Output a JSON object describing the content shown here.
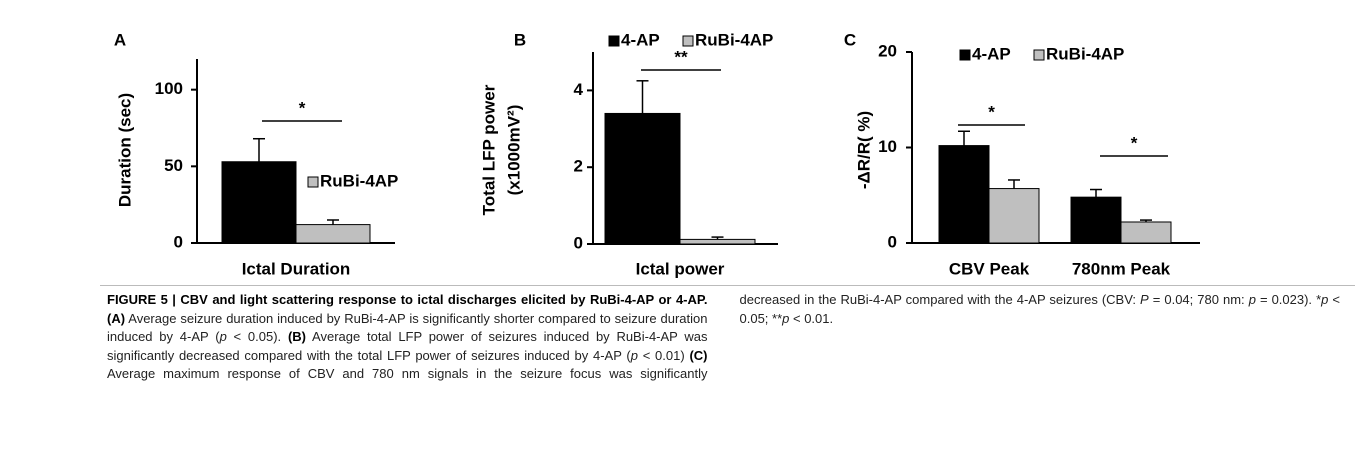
{
  "chart_data": [
    {
      "type": "bar",
      "panel": "A",
      "ylabel": "Duration (sec)",
      "ylim": [
        0,
        120
      ],
      "yticks": [
        0,
        50,
        100
      ],
      "categories": [
        "Ictal Duration"
      ],
      "series": [
        {
          "name": "4-AP",
          "color": "#000000",
          "values": [
            53
          ],
          "errors": [
            15
          ]
        },
        {
          "name": "RuBi-4AP",
          "color": "#bfbfbf",
          "values": [
            12
          ],
          "errors": [
            3
          ]
        }
      ],
      "annotations": [
        "*"
      ]
    },
    {
      "type": "bar",
      "panel": "B",
      "ylabel": [
        "Total LFP power",
        "(x1000mV²)"
      ],
      "ylim": [
        0,
        5
      ],
      "yticks": [
        0,
        2,
        4
      ],
      "categories": [
        "Ictal power"
      ],
      "series": [
        {
          "name": "4-AP",
          "color": "#000000",
          "values": [
            3.4
          ],
          "errors": [
            0.85
          ]
        },
        {
          "name": "RuBi-4AP",
          "color": "#bfbfbf",
          "values": [
            0.12
          ],
          "errors": [
            0.06
          ]
        }
      ],
      "annotations": [
        "**"
      ]
    },
    {
      "type": "bar",
      "panel": "C",
      "ylabel": "-ΔR/R( %)",
      "ylim": [
        0,
        20
      ],
      "yticks": [
        0,
        10,
        20
      ],
      "categories": [
        "CBV Peak",
        "780nm Peak"
      ],
      "series": [
        {
          "name": "4-AP",
          "color": "#000000",
          "values": [
            10.2,
            4.8
          ],
          "errors": [
            1.5,
            0.8
          ]
        },
        {
          "name": "RuBi-4AP",
          "color": "#bfbfbf",
          "values": [
            5.7,
            2.2
          ],
          "errors": [
            0.9,
            0.2
          ]
        }
      ],
      "annotations": [
        "*",
        "*"
      ]
    }
  ],
  "caption": [
    {
      "text": "FIGURE 5 | CBV and light scattering response to ictal discharges elicited by RuBi-4-AP or 4-AP.",
      "bold": true
    },
    {
      "text": " "
    },
    {
      "text": "(A)",
      "bold": true
    },
    {
      "text": " Average seizure duration induced by RuBi-4-AP is significantly shorter compared to seizure duration induced by 4-AP ("
    },
    {
      "text": "p",
      "italic": true
    },
    {
      "text": " < 0.05). "
    },
    {
      "text": "(B)",
      "bold": true
    },
    {
      "text": " Average total LFP power of seizures induced by RuBi-4-AP was significantly decreased compared with the total LFP power of seizures induced by 4-AP ("
    },
    {
      "text": "p",
      "italic": true
    },
    {
      "text": " < 0.01) "
    },
    {
      "text": "(C)",
      "bold": true
    },
    {
      "text": " Average maximum response of CBV and 780 nm signals in the seizure focus was significantly decreased in the RuBi-4-AP compared with the 4-AP seizures (CBV: "
    },
    {
      "text": "P",
      "italic": true
    },
    {
      "text": " = 0.04; 780 nm: "
    },
    {
      "text": "p",
      "italic": true
    },
    {
      "text": " = 0.023). *"
    },
    {
      "text": "p",
      "italic": true
    },
    {
      "text": " < 0.05; **"
    },
    {
      "text": "p",
      "italic": true
    },
    {
      "text": " < 0.01."
    }
  ]
}
